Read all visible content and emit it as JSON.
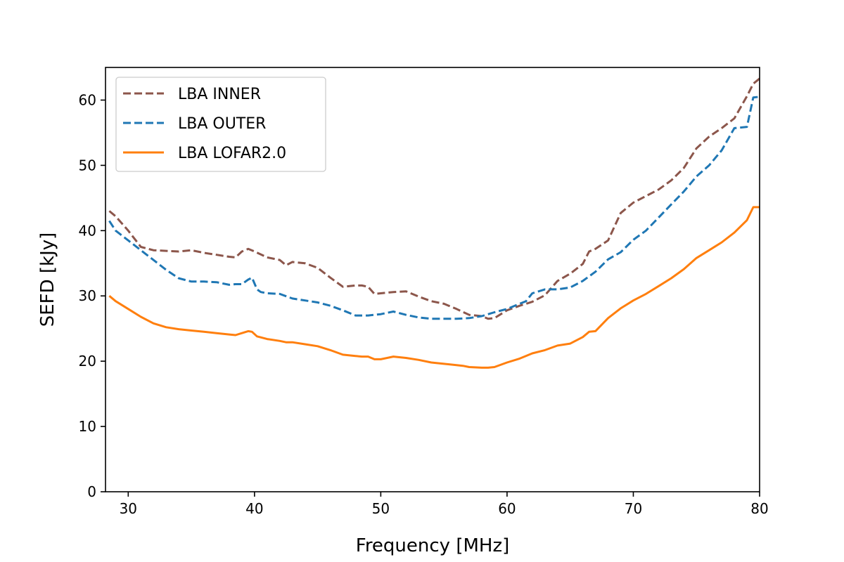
{
  "chart_data": {
    "type": "line",
    "title": "",
    "xlabel": "Frequency [MHz]",
    "ylabel": "SEFD [kJy]",
    "xlim": [
      28.2,
      80
    ],
    "ylim": [
      0,
      65
    ],
    "xticks": [
      30,
      40,
      50,
      60,
      70,
      80
    ],
    "yticks": [
      0,
      10,
      20,
      30,
      40,
      50,
      60
    ],
    "grid": false,
    "legend_position": "top-left",
    "series": [
      {
        "name": "LBA INNER",
        "color": "#8c564b",
        "style": "dashed",
        "x": [
          28.5,
          29,
          30,
          31,
          32,
          33,
          34,
          35,
          36,
          37,
          38,
          38.5,
          39,
          39.5,
          40,
          41,
          42,
          42.5,
          43,
          44,
          45,
          46,
          47,
          48,
          48.5,
          49,
          49.5,
          50,
          51,
          52,
          53,
          54,
          55,
          56,
          57,
          58,
          58.5,
          59,
          60,
          61,
          62,
          63,
          64,
          65,
          66,
          66.5,
          67,
          68,
          69,
          70,
          71,
          72,
          73,
          74,
          75,
          76,
          77,
          78,
          79,
          79.5,
          80
        ],
        "values": [
          43,
          42.2,
          40,
          37.5,
          37,
          36.9,
          36.8,
          37,
          36.6,
          36.3,
          36,
          35.9,
          36.8,
          37.2,
          36.8,
          35.9,
          35.5,
          34.7,
          35.2,
          35,
          34.3,
          32.8,
          31.4,
          31.6,
          31.6,
          31.4,
          30.3,
          30.4,
          30.6,
          30.7,
          29.9,
          29.2,
          28.8,
          28,
          27.1,
          26.9,
          26.5,
          26.6,
          27.8,
          28.5,
          29.1,
          30.1,
          32.3,
          33.4,
          34.9,
          36.8,
          37.2,
          38.5,
          42.7,
          44.3,
          45.3,
          46.3,
          47.7,
          49.6,
          52.6,
          54.4,
          55.7,
          57.2,
          60.6,
          62.5,
          63.3
        ]
      },
      {
        "name": "LBA OUTER",
        "color": "#1f77b4",
        "style": "dashed",
        "x": [
          28.5,
          29,
          30,
          31,
          32,
          33,
          34,
          35,
          36,
          37,
          38,
          38.5,
          39,
          39.5,
          39.8,
          40.2,
          40.5,
          41,
          42,
          43,
          44,
          45,
          46,
          47,
          48,
          49,
          50,
          51,
          52,
          53,
          54,
          55,
          56,
          57,
          58,
          59,
          60,
          61,
          61.5,
          62,
          63,
          64,
          65,
          66,
          67,
          68,
          69,
          70,
          71,
          72,
          73,
          74,
          75,
          76,
          77,
          78,
          79,
          79.5,
          80
        ],
        "values": [
          41.5,
          40,
          38.5,
          37,
          35.5,
          34,
          32.7,
          32.2,
          32.2,
          32.1,
          31.7,
          31.8,
          31.8,
          32.5,
          32.8,
          31,
          30.6,
          30.4,
          30.3,
          29.6,
          29.3,
          29,
          28.5,
          27.8,
          27,
          27,
          27.2,
          27.6,
          27.1,
          26.7,
          26.5,
          26.5,
          26.5,
          26.6,
          26.9,
          27.5,
          28,
          28.8,
          29.2,
          30.4,
          31,
          31,
          31.3,
          32.3,
          33.7,
          35.6,
          36.7,
          38.6,
          40,
          42,
          44,
          46,
          48.3,
          50,
          52.3,
          55.7,
          55.9,
          60.4,
          60.5
        ]
      },
      {
        "name": "LBA LOFAR2.0",
        "color": "#ff7f0e",
        "style": "solid",
        "x": [
          28.5,
          29,
          30,
          31,
          32,
          33,
          34,
          35,
          36,
          37,
          38,
          38.5,
          39,
          39.5,
          39.8,
          40.2,
          41,
          42,
          42.5,
          43,
          44,
          45,
          46,
          47,
          48,
          48.5,
          49,
          49.5,
          50,
          51,
          52,
          53,
          54,
          55,
          56,
          56.5,
          57,
          58,
          58.5,
          59,
          60,
          61,
          62,
          63,
          64,
          65,
          66,
          66.5,
          67,
          68,
          69,
          70,
          71,
          72,
          73,
          74,
          75,
          76,
          77,
          78,
          79,
          79.5,
          80
        ],
        "values": [
          30,
          29.2,
          28,
          26.8,
          25.8,
          25.2,
          24.9,
          24.7,
          24.5,
          24.3,
          24.1,
          24,
          24.3,
          24.6,
          24.5,
          23.8,
          23.4,
          23.1,
          22.9,
          22.9,
          22.6,
          22.3,
          21.7,
          21,
          20.8,
          20.7,
          20.7,
          20.3,
          20.3,
          20.7,
          20.5,
          20.2,
          19.8,
          19.6,
          19.4,
          19.3,
          19.1,
          19.0,
          19.0,
          19.1,
          19.8,
          20.4,
          21.2,
          21.7,
          22.4,
          22.7,
          23.7,
          24.5,
          24.6,
          26.6,
          28.1,
          29.3,
          30.3,
          31.5,
          32.7,
          34.1,
          35.8,
          37,
          38.2,
          39.7,
          41.6,
          43.6,
          43.6
        ]
      }
    ]
  }
}
